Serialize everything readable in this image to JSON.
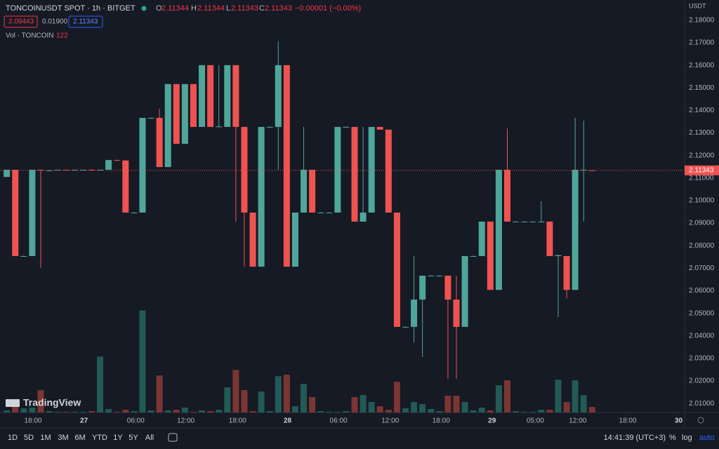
{
  "chart_data": {
    "type": "candlestick",
    "title": "TONCOINUSDT SPOT · 1h · BITGET",
    "ohlc_header": {
      "o_label": "O",
      "o": "2.11344",
      "h_label": "H",
      "h": "2.11344",
      "l_label": "L",
      "l": "2.11343",
      "c_label": "C",
      "c": "2.11343",
      "change": "−0.00001 (−0.00%)"
    },
    "indicators": {
      "sell": "2.09443",
      "spread": "0.01900",
      "buy": "2.11343"
    },
    "volume_title": "Vol · TONCOIN",
    "currency": "USDT",
    "up_color": "#4fa69b",
    "down_color": "#ef5350",
    "up_volume_color": "#225a55",
    "down_volume_color": "#7b3533",
    "open": [
      2.1105,
      2.1137,
      2.0754,
      2.0754,
      2.1137,
      2.1134,
      2.1134,
      2.1137,
      2.1134,
      2.1137,
      2.1137,
      2.1134,
      2.1137,
      2.118,
      2.1178,
      2.0947,
      2.0947,
      2.1367,
      2.1367,
      2.1149,
      2.1517,
      2.1252,
      2.1517,
      2.1327,
      2.1601,
      2.1327,
      2.1327,
      2.1601,
      2.1327,
      2.0947,
      2.0707,
      2.1327,
      2.1327,
      2.1601,
      2.0707,
      2.0947,
      2.1137,
      2.0947,
      2.0947,
      2.0947,
      2.1327,
      2.1327,
      2.0907,
      2.0947,
      2.1327,
      2.1315,
      2.0947,
      2.044,
      2.044,
      2.0561,
      2.0667,
      2.0667,
      2.0667,
      2.0561,
      2.044,
      2.0754,
      2.0754,
      2.0907,
      2.0604,
      2.1137,
      2.0907,
      2.0907,
      2.0907,
      2.0907,
      2.0907,
      2.0754,
      2.0754,
      2.0604,
      2.1134,
      2.11344
    ],
    "high": [
      2.1137,
      2.1137,
      2.0756,
      2.1137,
      2.1137,
      2.1137,
      2.1137,
      2.1137,
      2.1137,
      2.1137,
      2.114,
      2.1137,
      2.118,
      2.1182,
      2.118,
      2.0949,
      2.1367,
      2.1369,
      2.1408,
      2.1517,
      2.1517,
      2.1517,
      2.1517,
      2.1601,
      2.1601,
      2.1601,
      2.1601,
      2.1601,
      2.1327,
      2.0947,
      2.1327,
      2.1329,
      2.1707,
      2.1601,
      2.0947,
      2.1327,
      2.1137,
      2.0949,
      2.0949,
      2.1327,
      2.1329,
      2.1327,
      2.1327,
      2.1327,
      2.1327,
      2.1315,
      2.0947,
      2.0442,
      2.0754,
      2.0667,
      2.0669,
      2.0669,
      2.0667,
      2.0667,
      2.0754,
      2.0756,
      2.0907,
      2.0907,
      2.1137,
      2.132,
      2.0909,
      2.0909,
      2.0909,
      2.0997,
      2.0907,
      2.076,
      2.0754,
      2.1367,
      2.1355,
      2.11344
    ],
    "low": [
      2.1105,
      2.0754,
      2.0752,
      2.0754,
      2.0701,
      2.1134,
      2.1134,
      2.1134,
      2.1134,
      2.1134,
      2.1134,
      2.1134,
      2.1137,
      2.1176,
      2.0947,
      2.0945,
      2.0947,
      2.1365,
      2.1149,
      2.1149,
      2.1252,
      2.1252,
      2.1327,
      2.1327,
      2.1327,
      2.1325,
      2.1327,
      2.0907,
      2.0707,
      2.0707,
      2.0707,
      2.1325,
      2.1137,
      2.0707,
      2.0707,
      2.0947,
      2.0947,
      2.0945,
      2.0945,
      2.0947,
      2.1325,
      2.0907,
      2.0907,
      2.0947,
      2.1315,
      2.0947,
      2.044,
      2.0438,
      2.037,
      2.0306,
      2.0665,
      2.0665,
      2.0209,
      2.0209,
      2.044,
      2.0752,
      2.0754,
      2.0604,
      2.0604,
      2.0907,
      2.0905,
      2.0905,
      2.0905,
      2.0905,
      2.0754,
      2.0483,
      2.0567,
      2.0604,
      2.0907,
      2.11343
    ],
    "close": [
      2.1137,
      2.0754,
      2.0754,
      2.1137,
      2.1134,
      2.1134,
      2.1137,
      2.1134,
      2.1137,
      2.1137,
      2.1134,
      2.1137,
      2.118,
      2.1178,
      2.0947,
      2.0947,
      2.1367,
      2.1367,
      2.1149,
      2.1517,
      2.1252,
      2.1517,
      2.1327,
      2.1601,
      2.1327,
      2.1329,
      2.1601,
      2.1327,
      2.0947,
      2.0707,
      2.1327,
      2.1327,
      2.1601,
      2.0707,
      2.0947,
      2.1137,
      2.0947,
      2.0947,
      2.0947,
      2.1327,
      2.1327,
      2.0907,
      2.0947,
      2.1327,
      2.1315,
      2.0947,
      2.044,
      2.044,
      2.0561,
      2.0667,
      2.0667,
      2.0667,
      2.0561,
      2.044,
      2.0754,
      2.0754,
      2.0907,
      2.0604,
      2.1137,
      2.0907,
      2.0907,
      2.0907,
      2.0907,
      2.0907,
      2.0754,
      2.0758,
      2.0604,
      2.1137,
      2.1137,
      2.11343
    ],
    "volume": [
      46,
      137,
      92,
      107,
      488,
      31,
      15,
      15,
      15,
      15,
      31,
      1220,
      76,
      15,
      61,
      31,
      2227,
      46,
      808,
      46,
      61,
      107,
      15,
      46,
      31,
      61,
      549,
      930,
      488,
      31,
      458,
      31,
      793,
      824,
      137,
      625,
      336,
      31,
      15,
      15,
      31,
      336,
      381,
      229,
      137,
      61,
      671,
      92,
      229,
      183,
      76,
      31,
      366,
      366,
      229,
      46,
      107,
      46,
      595,
      702,
      31,
      15,
      15,
      61,
      61,
      717,
      229,
      702,
      381,
      122
    ],
    "last_price": 2.11343,
    "xlim": [
      -0.8,
      79.9
    ],
    "xticks": [
      {
        "value": 3.1,
        "label": "18:00"
      },
      {
        "value": 9.1,
        "label": "27"
      },
      {
        "value": 15.2,
        "label": "06:00"
      },
      {
        "value": 21.1,
        "label": "12:00"
      },
      {
        "value": 27.2,
        "label": "18:00"
      },
      {
        "value": 33.1,
        "label": "28"
      },
      {
        "value": 39.1,
        "label": "06:00"
      },
      {
        "value": 45.2,
        "label": "12:00"
      },
      {
        "value": 51.2,
        "label": "18:00"
      },
      {
        "value": 57.2,
        "label": "29"
      },
      {
        "value": 62.3,
        "label": "05:00"
      },
      {
        "value": 67.3,
        "label": "12:00"
      },
      {
        "value": 73.2,
        "label": "18:00"
      },
      {
        "value": 79.2,
        "label": "30"
      }
    ],
    "ylim": [
      2.006,
      2.189
    ],
    "yticks": [
      {
        "value": 2.18,
        "label": "2.18000"
      },
      {
        "value": 2.17,
        "label": "2.17000"
      },
      {
        "value": 2.16,
        "label": "2.16000"
      },
      {
        "value": 2.15,
        "label": "2.15000"
      },
      {
        "value": 2.14,
        "label": "2.14000"
      },
      {
        "value": 2.13,
        "label": "2.13000"
      },
      {
        "value": 2.12,
        "label": "2.12000"
      },
      {
        "value": 2.11,
        "label": "2.11000"
      },
      {
        "value": 2.1,
        "label": "2.10000"
      },
      {
        "value": 2.09,
        "label": "2.09000"
      },
      {
        "value": 2.08,
        "label": "2.08000"
      },
      {
        "value": 2.07,
        "label": "2.07000"
      },
      {
        "value": 2.06,
        "label": "2.06000"
      },
      {
        "value": 2.05,
        "label": "2.05000"
      },
      {
        "value": 2.04,
        "label": "2.04000"
      },
      {
        "value": 2.03,
        "label": "2.03000"
      },
      {
        "value": 2.02,
        "label": "2.02000"
      },
      {
        "value": 2.01,
        "label": "2.01000"
      }
    ],
    "volume_lim": [
      0,
      9000
    ],
    "grid": false
  },
  "ui": {
    "logo": "TradingView",
    "ranges": [
      "1D",
      "5D",
      "1M",
      "3M",
      "6M",
      "YTD",
      "1Y",
      "5Y",
      "All"
    ],
    "clock": "14:41:39 (UTC+3)",
    "options": [
      "%",
      "log",
      "auto"
    ]
  }
}
